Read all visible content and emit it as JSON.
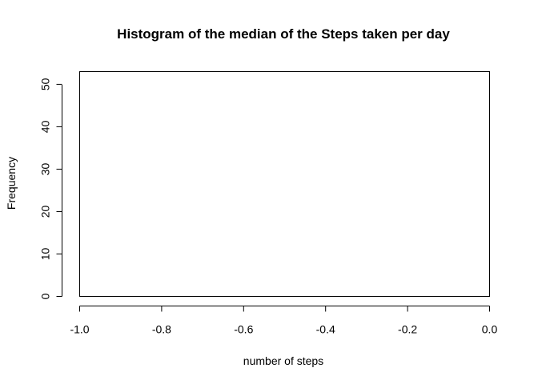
{
  "chart_data": {
    "type": "bar",
    "title": "Histogram of the median of the Steps taken per day",
    "xlabel": "number of steps",
    "ylabel": "Frequency",
    "categories": [],
    "values": [],
    "xlim": [
      -1.0,
      0.0
    ],
    "ylim": [
      0,
      53
    ],
    "x_ticks": [
      -1.0,
      -0.8,
      -0.6,
      -0.4,
      -0.2,
      0.0
    ],
    "x_tick_labels": [
      "-1.0",
      "-0.8",
      "-0.6",
      "-0.4",
      "-0.2",
      "0.0"
    ],
    "y_ticks": [
      0,
      10,
      20,
      30,
      40,
      50
    ],
    "y_tick_labels": [
      "0",
      "10",
      "20",
      "30",
      "40",
      "50"
    ],
    "grid": false,
    "legend": "none"
  }
}
